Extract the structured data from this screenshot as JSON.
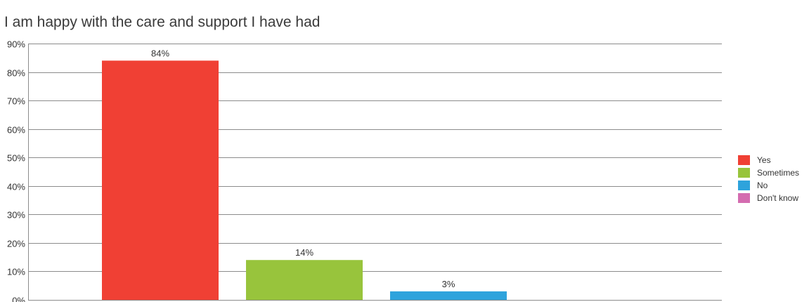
{
  "chart_data": {
    "type": "bar",
    "title": "I am happy with the care and support I have had",
    "xlabel": "",
    "ylabel": "",
    "categories": [
      "Yes",
      "Sometimes",
      "No",
      "Don't know"
    ],
    "values": [
      84,
      14,
      3,
      0
    ],
    "data_labels": [
      "84%",
      "14%",
      "3%",
      ""
    ],
    "colors": [
      "#f04034",
      "#98c43c",
      "#2ea3dc",
      "#d46cb0"
    ],
    "ylim": [
      0,
      90
    ],
    "yticks": [
      "0%",
      "10%",
      "20%",
      "30%",
      "40%",
      "50%",
      "60%",
      "70%",
      "80%",
      "90%"
    ],
    "grid": true,
    "legend_position": "right"
  }
}
